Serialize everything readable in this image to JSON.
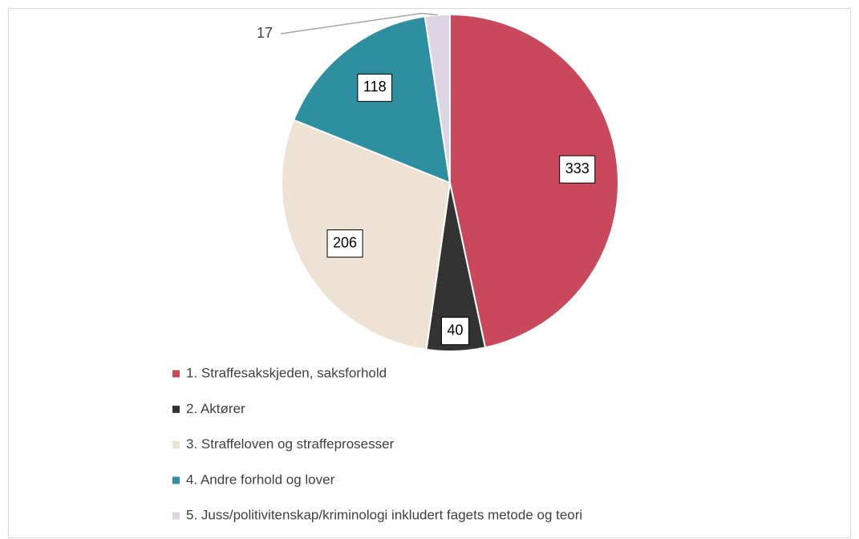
{
  "chart_data": {
    "type": "pie",
    "categories": [
      "1. Straffesakskjeden, saksforhold",
      "2. Aktører",
      "3. Straffeloven og straffeprosesser",
      "4. Andre forhold og lover",
      "5. Juss/politivitenskap/kriminologi inkludert fagets metode og teori"
    ],
    "values": [
      333,
      40,
      206,
      118,
      17
    ],
    "colors": [
      "#c9485b",
      "#333333",
      "#ede2d3",
      "#2e8fa0",
      "#ddd5e3"
    ],
    "legend": "bottom"
  }
}
